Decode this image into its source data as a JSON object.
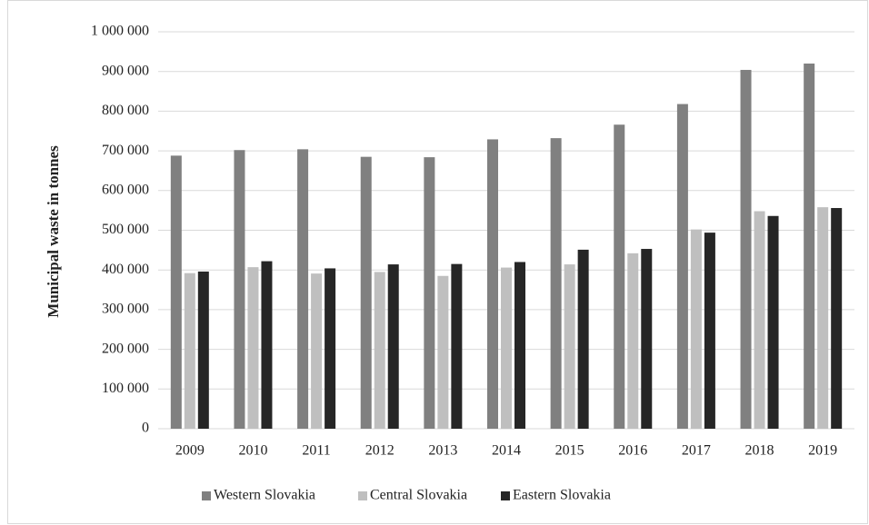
{
  "chart_data": {
    "type": "bar",
    "y_label": "Municipal waste in tonnes",
    "categories": [
      "2009",
      "2010",
      "2011",
      "2012",
      "2013",
      "2014",
      "2015",
      "2016",
      "2017",
      "2018",
      "2019"
    ],
    "series": [
      {
        "name": "Western Slovakia",
        "color": "#808080",
        "values": [
          688000,
          702000,
          704000,
          685000,
          684000,
          729000,
          732000,
          766000,
          818000,
          904000,
          920000
        ]
      },
      {
        "name": "Central Slovakia",
        "color": "#bfbfbf",
        "values": [
          392000,
          407000,
          391000,
          395000,
          385000,
          406000,
          414000,
          442000,
          502000,
          548000,
          558000
        ]
      },
      {
        "name": "Eastern Slovakia",
        "color": "#262626",
        "values": [
          396000,
          422000,
          404000,
          414000,
          415000,
          420000,
          451000,
          453000,
          494000,
          536000,
          556000
        ]
      }
    ],
    "ylim": [
      0,
      1000000
    ],
    "yticks": [
      0,
      {
        "value": 100000,
        "label": "100 000"
      },
      {
        "value": 200000,
        "label": "200 000"
      },
      {
        "value": 300000,
        "label": "300 000"
      },
      {
        "value": 400000,
        "label": "400 000"
      },
      {
        "value": 500000,
        "label": "500 000"
      },
      {
        "value": 600000,
        "label": "600 000"
      },
      {
        "value": 700000,
        "label": "700 000"
      },
      {
        "value": 800000,
        "label": "800 000"
      },
      {
        "value": 900000,
        "label": "900 000"
      },
      {
        "value": 1000000,
        "label": "1 000 000"
      }
    ],
    "grid": true,
    "legend": "bottom"
  }
}
